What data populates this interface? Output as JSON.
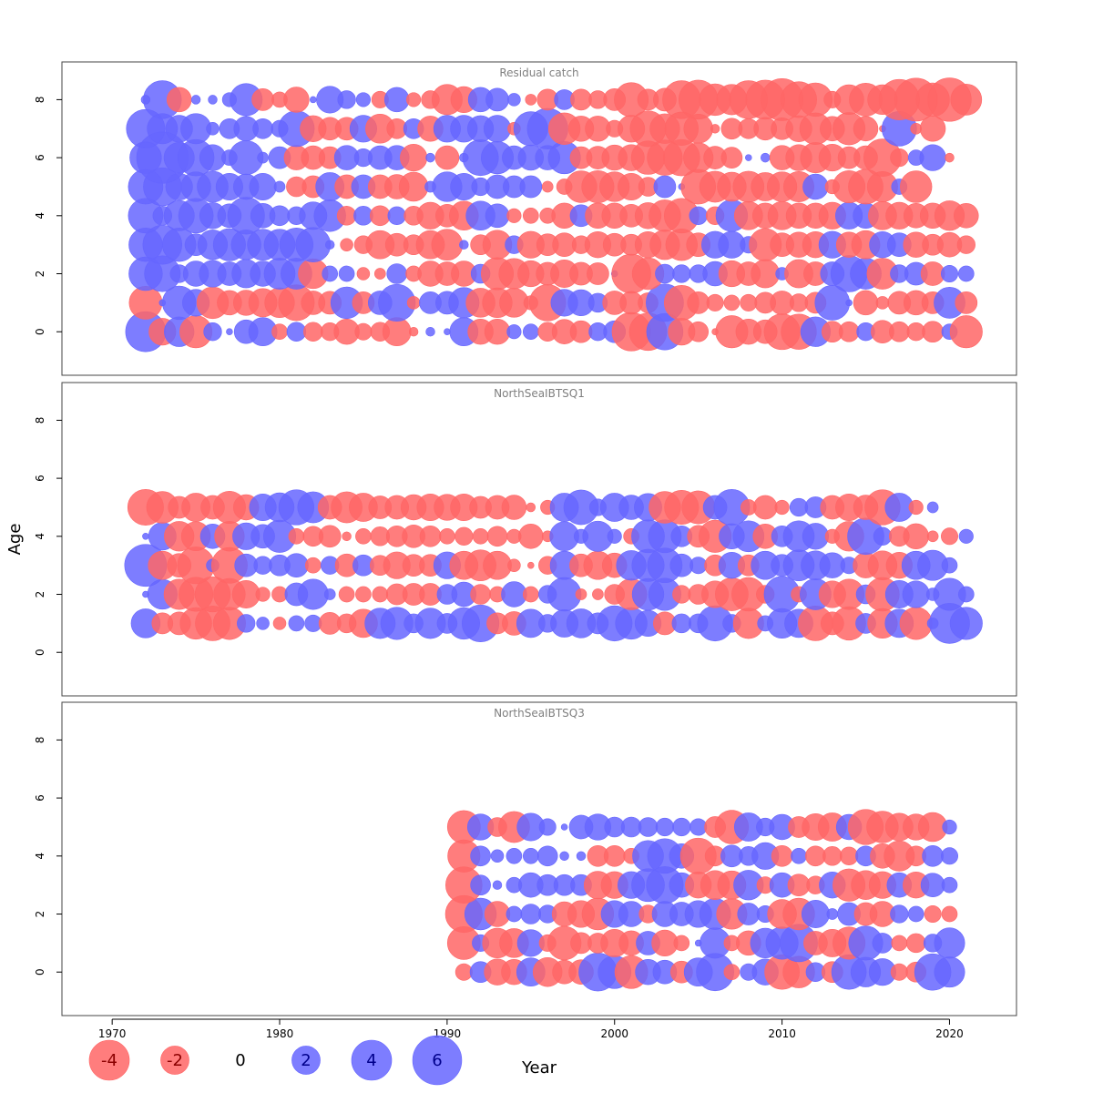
{
  "chart_data": {
    "type": "scatter",
    "encoding": "bubble",
    "ylabel": "Age",
    "xlabel": "Year",
    "xlim": [
      1967,
      2024
    ],
    "x_ticks": [
      1970,
      1980,
      1990,
      2000,
      2010,
      2020
    ],
    "y_ticks": [
      0,
      2,
      4,
      6,
      8
    ],
    "ylim": [
      -1.5,
      9.3
    ],
    "colors": {
      "positive": "#6666ff",
      "negative": "#ff6666"
    },
    "legend": {
      "placement": "bottom-left",
      "labels": [
        "-4",
        "-2",
        "0",
        "2",
        "4",
        "6"
      ],
      "values": [
        -4,
        -2,
        0,
        2,
        4,
        6
      ]
    },
    "panels": [
      {
        "title": "Residual catch",
        "start_year": 1972,
        "ages": [
          0,
          1,
          2,
          3,
          4,
          5,
          6,
          7,
          8
        ],
        "residuals": {
          "0": [
            4.0,
            -1.8,
            2.2,
            -2.6,
            0.8,
            0.1,
            1.4,
            2.0,
            -0.6,
            0.9,
            -0.9,
            -0.8,
            -1.6,
            -0.7,
            -0.9,
            -2.0,
            -0.2,
            0.2,
            0.1,
            2.0,
            -1.6,
            -1.6,
            0.5,
            0.6,
            -0.9,
            -1.5,
            -1.2,
            0.8,
            1.2,
            -3.7,
            -3.5,
            3.3,
            -1.8,
            -1.0,
            -0.1,
            -2.6,
            -1.6,
            -1.4,
            -3.2,
            -3.1,
            2.2,
            -1.1,
            -1.0,
            0.8,
            -1.3,
            -1.0,
            -0.8,
            -1.1,
            0.6,
            -2.6
          ],
          "1": [
            -2.7,
            0.1,
            2.8,
            1.8,
            -2.5,
            -1.5,
            -1.6,
            -2.0,
            -2.2,
            -3.2,
            -1.4,
            -1.3,
            2.5,
            -1.2,
            1.4,
            3.4,
            -0.4,
            1.2,
            1.3,
            2.3,
            -2.1,
            -2.2,
            -2.1,
            -0.5,
            -3.3,
            1.8,
            1.7,
            0.9,
            -1.4,
            -1.3,
            -1.0,
            3.5,
            -3.0,
            -1.2,
            -0.7,
            -0.6,
            -0.7,
            -1.1,
            -1.4,
            -0.8,
            -1.1,
            3.0,
            0.1,
            -1.5,
            -0.4,
            -1.3,
            -1.5,
            -1.2,
            2.4,
            -1.2
          ],
          "2": [
            2.8,
            3.2,
            0.8,
            1.6,
            1.8,
            1.4,
            2.0,
            1.6,
            2.4,
            2.4,
            -2.2,
            0.6,
            0.6,
            -0.4,
            -0.3,
            1.0,
            -0.6,
            -1.6,
            -1.4,
            -1.6,
            0.9,
            -2.6,
            -2.3,
            -1.7,
            -1.3,
            -1.9,
            -1.3,
            -1.2,
            0.1,
            -3.8,
            -2.5,
            0.9,
            0.8,
            0.8,
            1.5,
            -1.7,
            -1.4,
            -2.0,
            0.4,
            -2.0,
            -1.4,
            1.4,
            3.3,
            2.4,
            -2.4,
            0.8,
            1.3,
            -1.4,
            0.7,
            0.6
          ],
          "3": [
            2.8,
            3.8,
            2.8,
            1.2,
            2.2,
            2.6,
            2.2,
            2.4,
            2.4,
            2.8,
            3.0,
            0.2,
            -0.4,
            -0.8,
            -2.0,
            -1.3,
            -1.0,
            -2.0,
            -2.4,
            0.2,
            -1.0,
            -2.1,
            0.8,
            -1.8,
            -1.2,
            -1.4,
            -0.8,
            -1.7,
            -1.3,
            -1.1,
            -1.7,
            -2.2,
            -2.5,
            -1.4,
            1.8,
            1.8,
            0.7,
            -2.6,
            -1.4,
            -1.6,
            -1.7,
            1.8,
            -1.6,
            -2.0,
            1.7,
            1.4,
            -1.6,
            -1.1,
            -1.5,
            -0.8
          ],
          "4": [
            3.0,
            0.9,
            2.3,
            3.0,
            1.7,
            1.4,
            3.4,
            1.5,
            1.0,
            0.8,
            1.9,
            2.5,
            -0.9,
            0.9,
            -1.0,
            0.8,
            -0.9,
            -1.8,
            -1.3,
            -2.1,
            2.1,
            1.4,
            -0.5,
            -0.6,
            -0.6,
            -1.6,
            1.2,
            -1.6,
            -1.6,
            -1.3,
            -1.7,
            -2.5,
            -3.0,
            0.8,
            -0.8,
            2.5,
            -2.0,
            -1.6,
            -2.0,
            -1.6,
            -1.6,
            -1.8,
            1.8,
            1.6,
            -2.0,
            -1.8,
            -1.5,
            -1.6,
            -2.2,
            -1.5
          ],
          "5": [
            3.0,
            3.6,
            1.8,
            2.2,
            2.4,
            1.8,
            1.6,
            1.8,
            0.3,
            -1.0,
            -1.2,
            2.0,
            -1.4,
            1.4,
            -1.4,
            -1.5,
            -2.1,
            0.3,
            2.2,
            1.8,
            0.8,
            1.4,
            1.2,
            1.2,
            -0.3,
            -0.6,
            -2.5,
            -2.6,
            -2.2,
            -1.8,
            -0.9,
            1.2,
            0.1,
            -3.0,
            -2.4,
            -2.1,
            -2.4,
            -2.0,
            -2.2,
            -2.3,
            1.6,
            -0.5,
            -2.6,
            -3.0,
            -2.3,
            0.6,
            -2.5
          ],
          "6": [
            2.5,
            6.6,
            2.3,
            3.3,
            1.7,
            0.6,
            2.9,
            0.3,
            1.2,
            -1.5,
            -1.4,
            -1.2,
            1.5,
            0.8,
            1.4,
            1.5,
            -1.8,
            0.2,
            -1.4,
            0.2,
            3.2,
            2.6,
            1.4,
            1.6,
            1.5,
            2.6,
            -1.2,
            -1.3,
            -1.6,
            -1.7,
            -2.8,
            -3.1,
            -3.3,
            -2.2,
            -1.3,
            -1.1,
            0.1,
            0.2,
            -1.5,
            -1.7,
            -2.3,
            -1.8,
            -1.2,
            -1.4,
            -3.5,
            -0.8,
            0.6,
            1.7,
            -0.2
          ],
          "7": [
            3.7,
            2.3,
            1.8,
            2.3,
            0.4,
            1.0,
            1.5,
            1.0,
            0.7,
            3.2,
            -1.7,
            -1.3,
            -1.3,
            1.8,
            -2.1,
            -1.0,
            1.0,
            -1.6,
            1.8,
            1.8,
            1.7,
            1.8,
            -0.4,
            2.9,
            4.1,
            -2.5,
            -1.6,
            -1.6,
            -0.7,
            -1.8,
            -3.2,
            -2.2,
            -2.8,
            -2.1,
            -0.2,
            -1.1,
            -1.0,
            -1.3,
            -1.2,
            -1.7,
            -2.5,
            -1.5,
            -2.6,
            -1.5,
            -0.1,
            3.0,
            -0.3,
            -1.6
          ],
          "8": [
            0.2,
            3.6,
            -1.5,
            0.2,
            0.2,
            0.5,
            2.6,
            -1.2,
            -0.6,
            -1.6,
            0.1,
            1.8,
            0.8,
            0.5,
            -0.7,
            1.5,
            -0.5,
            -0.8,
            -2.3,
            -1.7,
            1.5,
            1.3,
            0.4,
            -0.3,
            -1.1,
            1.0,
            -1.1,
            -0.8,
            -1.2,
            -2.9,
            -1.1,
            -1.3,
            -3.6,
            -3.8,
            -2.5,
            -2.3,
            -3.6,
            -3.8,
            -4.4,
            -3.2,
            -2.8,
            -0.7,
            -2.2,
            -2.7,
            -2.2,
            -4.1,
            -4.6,
            -2.8,
            -4.7,
            -2.4
          ]
        }
      },
      {
        "title": "NorthSeaIBTSQ1",
        "start_year": 1972,
        "ages": [
          1,
          2,
          3,
          4,
          5
        ],
        "residuals": {
          "1": [
            2.1,
            -1.1,
            -1.3,
            -2.5,
            -3.0,
            -2.6,
            0.8,
            0.4,
            -0.4,
            0.6,
            0.7,
            -1.2,
            -0.9,
            -2.0,
            2.3,
            2.6,
            0.9,
            2.3,
            1.0,
            2.5,
            3.4,
            -1.1,
            -1.4,
            2.0,
            0.8,
            1.9,
            2.1,
            1.1,
            3.1,
            2.5,
            1.7,
            -1.3,
            0.9,
            0.9,
            3.1,
            0.8,
            -2.3,
            0.6,
            2.2,
            2.0,
            -3.0,
            -1.3,
            -2.8,
            1.0,
            -2.2,
            2.0,
            -2.6,
            0.3,
            4.0,
            2.6
          ],
          "2": [
            0.1,
            2.2,
            -2.3,
            -2.9,
            -3.1,
            -2.5,
            -1.9,
            -0.5,
            -0.6,
            1.3,
            2.3,
            0.3,
            -0.6,
            -0.6,
            -0.6,
            -1.1,
            -1.2,
            -1.2,
            1.0,
            1.5,
            -1.0,
            -0.6,
            1.6,
            -0.6,
            0.8,
            2.8,
            -0.3,
            -0.3,
            -1.0,
            -2.4,
            2.5,
            2.6,
            -0.8,
            -1.0,
            -1.8,
            -2.7,
            -2.8,
            -0.8,
            3.2,
            -0.6,
            2.4,
            -1.8,
            -2.3,
            0.9,
            -2.8,
            1.9,
            1.8,
            0.4,
            2.6,
            0.6
          ],
          "3": [
            4.4,
            -2.0,
            -1.4,
            -3.4,
            0.4,
            -3.2,
            1.3,
            0.8,
            1.1,
            1.4,
            -0.6,
            0.8,
            -1.3,
            1.1,
            -1.0,
            -1.8,
            -1.2,
            -1.2,
            1.8,
            -2.0,
            -2.4,
            -2.0,
            -0.4,
            -0.1,
            -0.8,
            2.0,
            -1.3,
            -2.0,
            -1.5,
            2.2,
            2.6,
            3.0,
            1.3,
            0.7,
            -1.1,
            1.7,
            -1.1,
            2.0,
            1.2,
            2.4,
            2.1,
            1.6,
            0.7,
            -1.6,
            -2.1,
            -1.7,
            2.0,
            2.3,
            0.6
          ],
          "4": [
            0.1,
            1.9,
            -2.2,
            -2.1,
            1.5,
            -2.2,
            1.8,
            1.4,
            2.6,
            -0.6,
            -1.0,
            -1.2,
            -0.2,
            -0.6,
            -0.9,
            -1.1,
            -1.3,
            -1.1,
            -0.6,
            -0.8,
            -0.6,
            -1.0,
            -0.5,
            -1.5,
            -0.3,
            2.1,
            0.5,
            2.3,
            0.5,
            -0.6,
            2.7,
            2.7,
            1.1,
            -1.2,
            -2.6,
            1.6,
            2.4,
            -1.5,
            1.1,
            2.4,
            1.7,
            -0.5,
            -2.2,
            3.3,
            0.8,
            -1.0,
            -1.6,
            -0.3,
            -0.7,
            0.5
          ],
          "5": [
            -3.2,
            -2.5,
            -1.2,
            -2.0,
            -1.4,
            -2.6,
            -1.6,
            1.8,
            2.1,
            3.1,
            2.4,
            -1.4,
            -2.4,
            -2.0,
            -1.3,
            -1.4,
            -1.6,
            -1.8,
            -1.7,
            -1.8,
            -1.2,
            -1.4,
            -1.5,
            -0.2,
            -0.5,
            2.0,
            3.0,
            0.7,
            2.0,
            1.5,
            1.9,
            -2.5,
            -2.9,
            -2.7,
            1.4,
            3.2,
            -0.6,
            -1.4,
            -0.5,
            0.8,
            1.1,
            -1.4,
            -1.8,
            -1.5,
            -3.1,
            2.0,
            -0.5,
            0.3
          ]
        }
      },
      {
        "title": "NorthSeaIBTSQ3",
        "start_year": 1991,
        "ages": [
          0,
          1,
          2,
          3,
          4,
          5
        ],
        "residuals": {
          "0": [
            -0.7,
            1.1,
            -1.7,
            -1.6,
            2.0,
            -2.1,
            -1.4,
            -1.5,
            3.6,
            2.7,
            -2.7,
            1.6,
            1.4,
            -1.2,
            2.0,
            3.5,
            -0.6,
            0.7,
            1.7,
            -3.0,
            -2.5,
            0.9,
            -1.1,
            3.0,
            2.2,
            1.8,
            -0.7,
            -1.0,
            3.3,
            2.3
          ],
          "1": [
            -2.7,
            0.7,
            -2.2,
            -2.1,
            1.8,
            -0.7,
            -2.8,
            -1.1,
            -1.0,
            -1.9,
            -1.5,
            1.4,
            -1.7,
            -0.6,
            0.1,
            2.3,
            -0.6,
            -1.5,
            2.2,
            2.6,
            3.5,
            -1.4,
            -1.9,
            -2.6,
            2.9,
            1.0,
            -0.6,
            -0.9,
            0.8,
            2.3
          ],
          "2": [
            -3.4,
            2.5,
            -1.6,
            0.6,
            1.0,
            0.8,
            -1.5,
            -1.8,
            -2.5,
            1.8,
            1.6,
            -0.8,
            1.6,
            1.4,
            1.8,
            2.4,
            -2.3,
            1.2,
            0.7,
            -2.1,
            -2.5,
            1.9,
            0.3,
            1.3,
            -1.3,
            -1.6,
            0.8,
            0.6,
            -0.7,
            -0.6
          ],
          "3": [
            -3.3,
            1.0,
            0.2,
            0.6,
            1.5,
            1.1,
            1.1,
            1.1,
            -1.9,
            -1.8,
            1.8,
            2.7,
            3.4,
            1.5,
            -1.7,
            -2.1,
            -2.0,
            2.2,
            -0.7,
            1.5,
            -1.2,
            -0.8,
            1.7,
            -2.6,
            -2.1,
            -1.8,
            1.5,
            -1.7,
            1.4,
            0.6
          ],
          "4": [
            -2.6,
            1.0,
            0.4,
            0.6,
            0.6,
            1.0,
            0.2,
            0.2,
            -1.1,
            -1.1,
            -0.6,
            2.4,
            3.0,
            1.5,
            -3.2,
            -1.0,
            1.2,
            0.9,
            1.8,
            -1.1,
            0.6,
            -1.0,
            -0.9,
            -0.8,
            1.0,
            -1.5,
            -2.3,
            -1.0,
            1.1,
            0.7
          ],
          "5": [
            -2.7,
            1.7,
            -0.9,
            -2.4,
            1.9,
            0.7,
            0.1,
            1.4,
            1.7,
            1.0,
            1.0,
            0.9,
            0.8,
            0.8,
            0.7,
            -1.1,
            -2.8,
            2.0,
            0.8,
            1.6,
            -1.1,
            -1.8,
            -2.0,
            1.6,
            -3.1,
            -2.5,
            -1.9,
            -1.7,
            -2.1,
            0.5
          ]
        }
      }
    ]
  }
}
